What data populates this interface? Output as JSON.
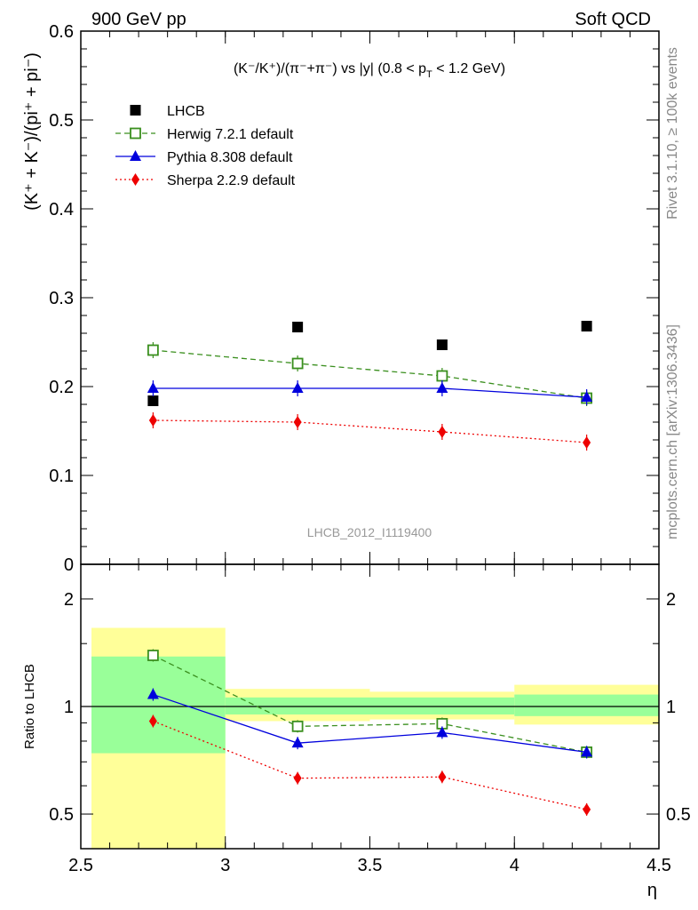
{
  "header": {
    "left": "900 GeV pp",
    "right": "Soft QCD"
  },
  "plot_title": "(K⁻/K⁺)/(π⁻+π⁻) vs |y| (0.8 < p",
  "plot_title_sub": "T",
  "plot_title_end": " < 1.2 GeV)",
  "ylabel_main": "(K⁺ + K⁻)/(pi⁺ + pi⁻)",
  "ylabel_ratio": "Ratio to LHCB",
  "xlabel": "η",
  "watermark": "LHCB_2012_I1119400",
  "side_top": "Rivet 3.1.10, ≥ 100k events",
  "side_bottom": "mcplots.cern.ch [arXiv:1306.3436]",
  "colors": {
    "data": "#000000",
    "herwig": "#3a8f1e",
    "pythia": "#0000dd",
    "sherpa": "#ee0000",
    "band_inner": "#99ff99",
    "band_outer": "#ffff99"
  },
  "chart_data": [
    {
      "type": "scatter",
      "panel": "main",
      "x": [
        2.75,
        3.25,
        3.75,
        4.25
      ],
      "xlim": [
        2.5,
        4.5
      ],
      "ylim": [
        0,
        0.6
      ],
      "yticks": [
        "0",
        "0.1",
        "0.2",
        "0.3",
        "0.4",
        "0.5",
        "0.6"
      ],
      "legend_position": "top-left",
      "series": [
        {
          "name": "LHCB",
          "marker": "square-filled",
          "values": [
            0.184,
            0.267,
            0.247,
            0.268
          ]
        },
        {
          "name": "Herwig 7.2.1 default",
          "marker": "square-open",
          "line": "dashed",
          "values": [
            0.241,
            0.226,
            0.212,
            0.187
          ]
        },
        {
          "name": "Pythia 8.308 default",
          "marker": "triangle",
          "line": "solid",
          "values": [
            0.198,
            0.198,
            0.198,
            0.188
          ]
        },
        {
          "name": "Sherpa 2.2.9 default",
          "marker": "diamond",
          "line": "dotted",
          "values": [
            0.162,
            0.16,
            0.149,
            0.137
          ]
        }
      ]
    },
    {
      "type": "line",
      "panel": "ratio",
      "x": [
        2.75,
        3.25,
        3.75,
        4.25
      ],
      "xlim": [
        2.5,
        4.5
      ],
      "xticks": [
        "2.5",
        "3",
        "3.5",
        "4",
        "4.5"
      ],
      "yscale": "log",
      "ylim": [
        0.4,
        2.5
      ],
      "yticks": [
        "0.5",
        "1",
        "2"
      ],
      "bands": [
        {
          "x0": 2.5,
          "x1": 3.0,
          "inner": [
            0.74,
            1.38
          ],
          "outer": [
            0.0,
            1.66
          ]
        },
        {
          "x0": 3.0,
          "x1": 3.5,
          "inner": [
            0.95,
            1.06
          ],
          "outer": [
            0.91,
            1.12
          ]
        },
        {
          "x0": 3.5,
          "x1": 4.0,
          "inner": [
            0.95,
            1.06
          ],
          "outer": [
            0.92,
            1.1
          ]
        },
        {
          "x0": 4.0,
          "x1": 4.5,
          "inner": [
            0.94,
            1.08
          ],
          "outer": [
            0.89,
            1.15
          ]
        }
      ],
      "series": [
        {
          "name": "Herwig 7.2.1 default",
          "values": [
            1.39,
            0.88,
            0.895,
            0.745
          ]
        },
        {
          "name": "Pythia 8.308 default",
          "values": [
            1.08,
            0.79,
            0.845,
            0.745
          ]
        },
        {
          "name": "Sherpa 2.2.9 default",
          "values": [
            0.91,
            0.63,
            0.635,
            0.515
          ]
        }
      ]
    }
  ]
}
